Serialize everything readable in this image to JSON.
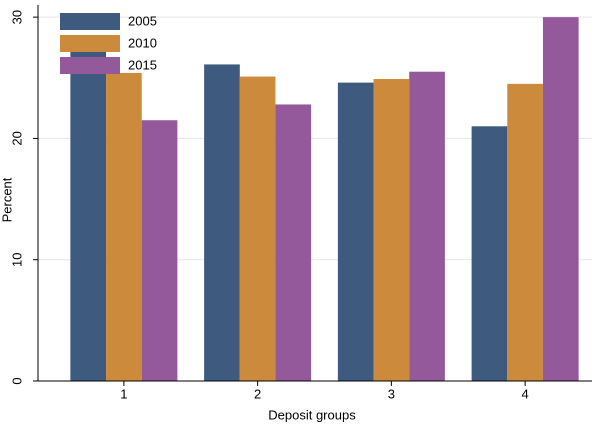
{
  "chart_data": {
    "type": "bar",
    "x_label": "Deposit groups",
    "y_label": "Percent",
    "categories": [
      "1",
      "2",
      "3",
      "4"
    ],
    "series": [
      {
        "name": "2005",
        "color": "#3e5a7e",
        "values": [
          27.9,
          26.1,
          24.6,
          21.0
        ]
      },
      {
        "name": "2010",
        "color": "#cc8b3c",
        "values": [
          25.4,
          25.1,
          24.9,
          24.5
        ]
      },
      {
        "name": "2015",
        "color": "#93599a",
        "values": [
          21.5,
          22.8,
          25.5,
          30.0
        ]
      }
    ],
    "ylim": [
      0,
      31
    ],
    "yticks": [
      0,
      10,
      20,
      30
    ],
    "grid": true,
    "legend": "top-left"
  }
}
